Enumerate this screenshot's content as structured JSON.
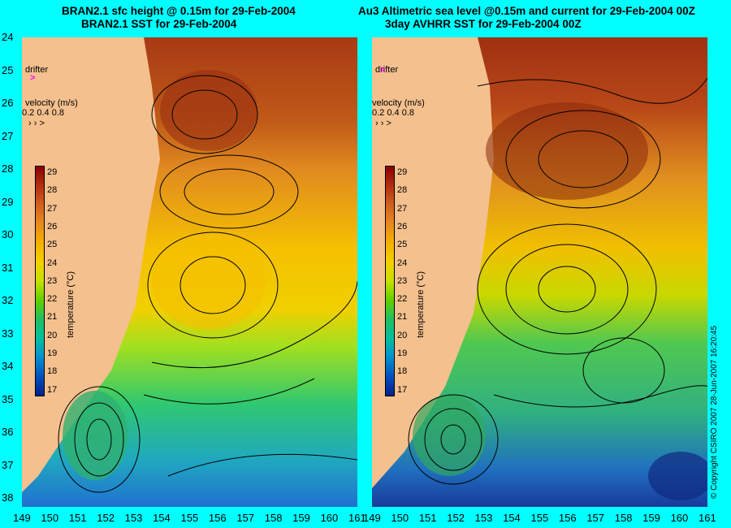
{
  "left_panel": {
    "title_line1": "BRAN2.1 sfc height @ 0.15m for 29-Feb-2004",
    "title_line2": "BRAN2.1 SST for 29-Feb-2004"
  },
  "right_panel": {
    "title_line1": "Au3 Altimetric sea level  @0.15m and current for 29-Feb-2004 00Z",
    "title_line2": "3day AVHRR SST for 29-Feb-2004 00Z"
  },
  "y_axis_labels": [
    "24",
    "25",
    "26",
    "27",
    "28",
    "29",
    "30",
    "31",
    "32",
    "33",
    "34",
    "35",
    "36",
    "37",
    "38"
  ],
  "x_axis_labels": [
    "149",
    "150",
    "151",
    "152",
    "153",
    "154",
    "155",
    "156",
    "157",
    "158",
    "159",
    "160",
    "161"
  ],
  "legend": {
    "drifter_label": "drifter",
    "velocity_title": "velocity (m/s)",
    "velocity_values": "0.2 0.4 0.8",
    "velocity_arrows": "›  ›  >"
  },
  "colorbar": {
    "title": "temperature (°C)",
    "ticks": [
      "29",
      "28",
      "27",
      "26",
      "25",
      "24",
      "23",
      "22",
      "21",
      "20",
      "19",
      "18",
      "17"
    ],
    "colors": [
      "#8b0000",
      "#b03010",
      "#d06020",
      "#e88a20",
      "#f5b000",
      "#f5d000",
      "#c8e000",
      "#60d000",
      "#20c060",
      "#00c0a0",
      "#0090d0",
      "#0050c0",
      "#00208a"
    ]
  },
  "copyright": "© Copyright CSIRO 2007   28-Jun-2007 16:20:45",
  "colors": {
    "background": "#00ffff",
    "land": "#f4c08e"
  }
}
